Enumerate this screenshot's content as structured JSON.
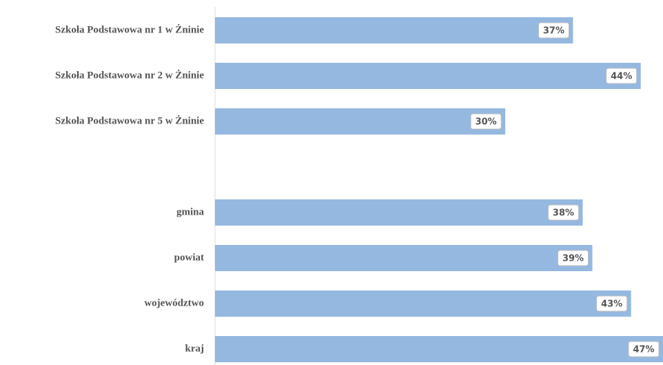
{
  "chart_data": {
    "type": "bar",
    "orientation": "horizontal",
    "categories": [
      "Szkoła Podstawowa nr 1 w Żninie",
      "Szkoła Podstawowa nr 2 w Żninie",
      "Szkoła Podstawowa nr 5 w Żninie",
      null,
      "gmina",
      "powiat",
      "województwo",
      "kraj"
    ],
    "values": [
      37,
      44,
      30,
      null,
      38,
      39,
      43,
      47
    ],
    "value_labels": [
      "37%",
      "44%",
      "30%",
      null,
      "38%",
      "39%",
      "43%",
      "47%"
    ],
    "color": "#95b8e0",
    "xlim": [
      0,
      46.3
    ]
  }
}
